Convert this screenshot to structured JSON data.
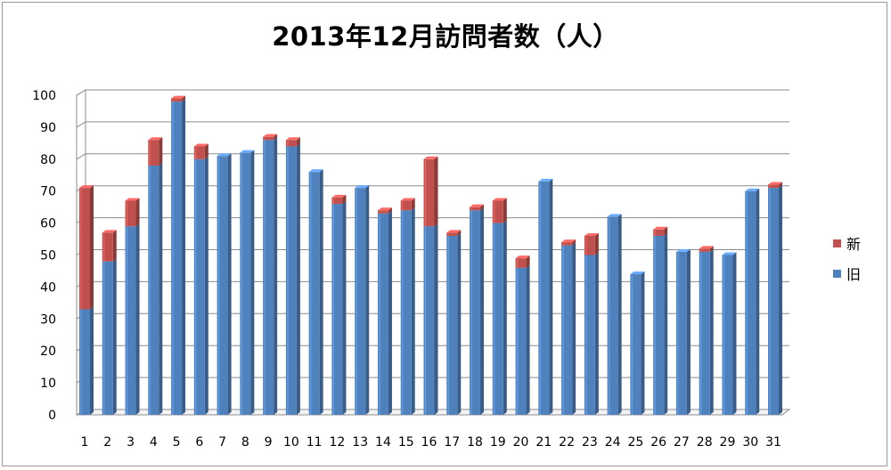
{
  "chart_data": {
    "type": "bar",
    "stacked": true,
    "style": "3d-column",
    "title": "2013年12月訪問者数（人）",
    "categories": [
      "1",
      "2",
      "3",
      "4",
      "5",
      "6",
      "7",
      "8",
      "9",
      "10",
      "11",
      "12",
      "13",
      "14",
      "15",
      "16",
      "17",
      "18",
      "19",
      "20",
      "21",
      "22",
      "23",
      "24",
      "25",
      "26",
      "27",
      "28",
      "29",
      "30",
      "31"
    ],
    "series": [
      {
        "name": "旧",
        "color": "#4f81bd",
        "values": [
          33,
          48,
          59,
          78,
          98,
          80,
          81,
          82,
          86,
          84,
          76,
          66,
          71,
          63,
          64,
          59,
          56,
          64,
          60,
          46,
          73,
          53,
          50,
          62,
          44,
          56,
          51,
          51,
          50,
          70,
          71
        ]
      },
      {
        "name": "新",
        "color": "#c0504d",
        "values": [
          38,
          9,
          8,
          8,
          1,
          4,
          0,
          0,
          1,
          2,
          0,
          2,
          0,
          1,
          3,
          21,
          1,
          1,
          7,
          3,
          0,
          1,
          6,
          0,
          0,
          2,
          0,
          1,
          0,
          0,
          1
        ]
      }
    ],
    "ylim": [
      0,
      100
    ],
    "yticks": [
      "0",
      "10",
      "20",
      "30",
      "40",
      "50",
      "60",
      "70",
      "80",
      "90",
      "100"
    ],
    "grid": true,
    "legend_position": "right",
    "legend_order": [
      "新",
      "旧"
    ]
  }
}
